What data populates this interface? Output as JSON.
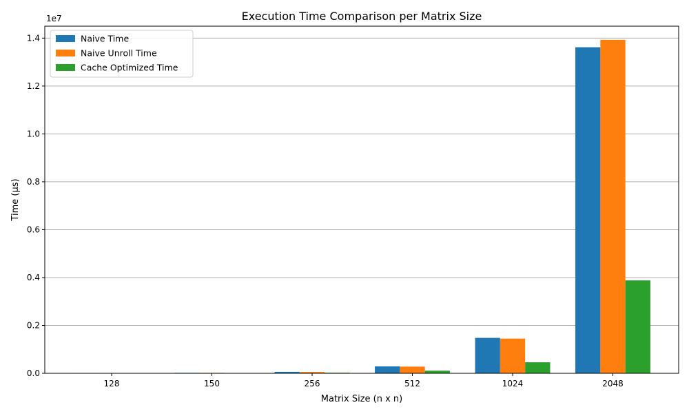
{
  "chart_data": {
    "type": "bar",
    "title": "Execution Time Comparison per Matrix Size",
    "xlabel": "Matrix Size (n x n)",
    "ylabel": "Time (µs)",
    "offset_label": "1e7",
    "categories": [
      "128",
      "150",
      "256",
      "512",
      "1024",
      "2048"
    ],
    "series": [
      {
        "name": "Naive Time",
        "color": "#1f77b4",
        "values": [
          15000,
          20000,
          60000,
          290000,
          1480000,
          13620000
        ]
      },
      {
        "name": "Naive Unroll Time",
        "color": "#ff7f0e",
        "values": [
          14000,
          19000,
          55000,
          280000,
          1450000,
          13930000
        ]
      },
      {
        "name": "Cache Optimized Time",
        "color": "#2ca02c",
        "values": [
          6000,
          8000,
          25000,
          110000,
          460000,
          3880000
        ]
      }
    ],
    "ylim": [
      0,
      14500000
    ],
    "yticks": [
      0,
      2000000,
      4000000,
      6000000,
      8000000,
      10000000,
      12000000,
      14000000
    ],
    "ytick_labels": [
      "0.0",
      "0.2",
      "0.4",
      "0.6",
      "0.8",
      "1.0",
      "1.2",
      "1.4"
    ],
    "grid": "y",
    "legend_position": "top-left"
  }
}
